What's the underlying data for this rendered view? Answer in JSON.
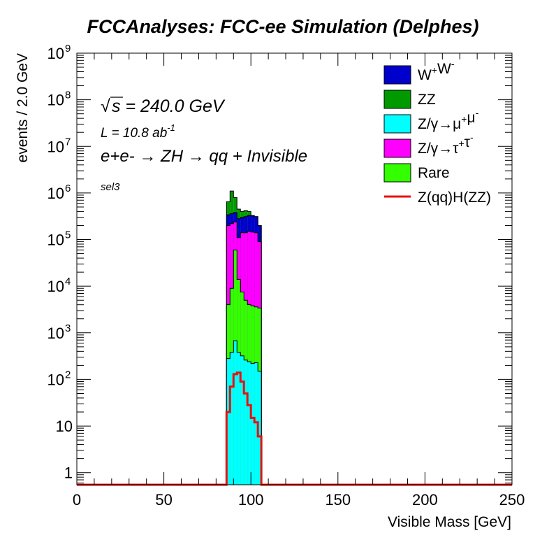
{
  "chart_data": {
    "type": "area",
    "title": "FCCAnalyses: FCC-ee Simulation (Delphes)",
    "xlabel": "Visible Mass [GeV]",
    "ylabel": "events / 2.0 GeV",
    "xlim": [
      0,
      250
    ],
    "ylim": [
      0.55,
      1000000000
    ],
    "yscale": "log",
    "bin_width": 2.0,
    "x_ticks": [
      "0",
      "50",
      "100",
      "150",
      "200",
      "250"
    ],
    "y_ticks": [
      {
        "value": 1,
        "base": "1",
        "exp": ""
      },
      {
        "value": 10,
        "base": "10",
        "exp": ""
      },
      {
        "value": 100,
        "base": "10",
        "exp": "2"
      },
      {
        "value": 1000,
        "base": "10",
        "exp": "3"
      },
      {
        "value": 10000,
        "base": "10",
        "exp": "4"
      },
      {
        "value": 100000,
        "base": "10",
        "exp": "5"
      },
      {
        "value": 1000000,
        "base": "10",
        "exp": "6"
      },
      {
        "value": 10000000,
        "base": "10",
        "exp": "7"
      },
      {
        "value": 100000000,
        "base": "10",
        "exp": "8"
      },
      {
        "value": 1000000000,
        "base": "10",
        "exp": "9"
      }
    ],
    "annotations": {
      "sqrt_symbol": "√",
      "sqrt_s": "s = 240.0 GeV",
      "lumi": "L = 10.8 ab",
      "lumi_exp": "-1",
      "process": "e+e- → ZH → qq + Invisible",
      "selection": "sel3"
    },
    "legend_position": "top-right",
    "legend": [
      {
        "label": "W+W-",
        "color": "#0000cc",
        "style": "box"
      },
      {
        "label": "ZZ",
        "color": "#009900",
        "style": "box"
      },
      {
        "label": "Z/γ→μ+μ-",
        "color": "#00ffff",
        "style": "box"
      },
      {
        "label": "Z/γ→τ+τ-",
        "color": "#ff00ff",
        "style": "box"
      },
      {
        "label": "Rare",
        "color": "#33ff00",
        "style": "box"
      },
      {
        "label": "Z(qq)H(ZZ)",
        "color": "#e8100c",
        "style": "line"
      }
    ],
    "bin_edges": [
      86,
      88,
      90,
      92,
      94,
      96,
      98,
      100,
      102,
      104,
      106
    ],
    "stack_totals": [
      {
        "name": "Z/γ→μ+μ-",
        "color": "#00ffff",
        "values": [
          280,
          380,
          680,
          380,
          320,
          260,
          240,
          220,
          230,
          150
        ]
      },
      {
        "name": "Rare",
        "color": "#33ff00",
        "values": [
          4000,
          9000,
          60000,
          14000,
          7500,
          5000,
          4000,
          3800,
          3600,
          3400
        ]
      },
      {
        "name": "Z/γ→τ+τ-",
        "color": "#ff00ff",
        "values": [
          200000,
          220000,
          240000,
          110000,
          140000,
          140000,
          150000,
          145000,
          140000,
          90000
        ]
      },
      {
        "name": "W+W-",
        "color": "#0000cc",
        "values": [
          340000,
          360000,
          380000,
          280000,
          300000,
          310000,
          330000,
          320000,
          310000,
          200000
        ]
      },
      {
        "name": "ZZ",
        "color": "#009900",
        "values": [
          650000,
          1100000,
          800000,
          450000,
          400000,
          420000,
          400000,
          330000,
          310000,
          200000
        ]
      }
    ],
    "signal": {
      "name": "Z(qq)H(ZZ)",
      "color": "#e8100c",
      "values": [
        20,
        70,
        130,
        140,
        90,
        50,
        28,
        15,
        12,
        6
      ]
    }
  }
}
